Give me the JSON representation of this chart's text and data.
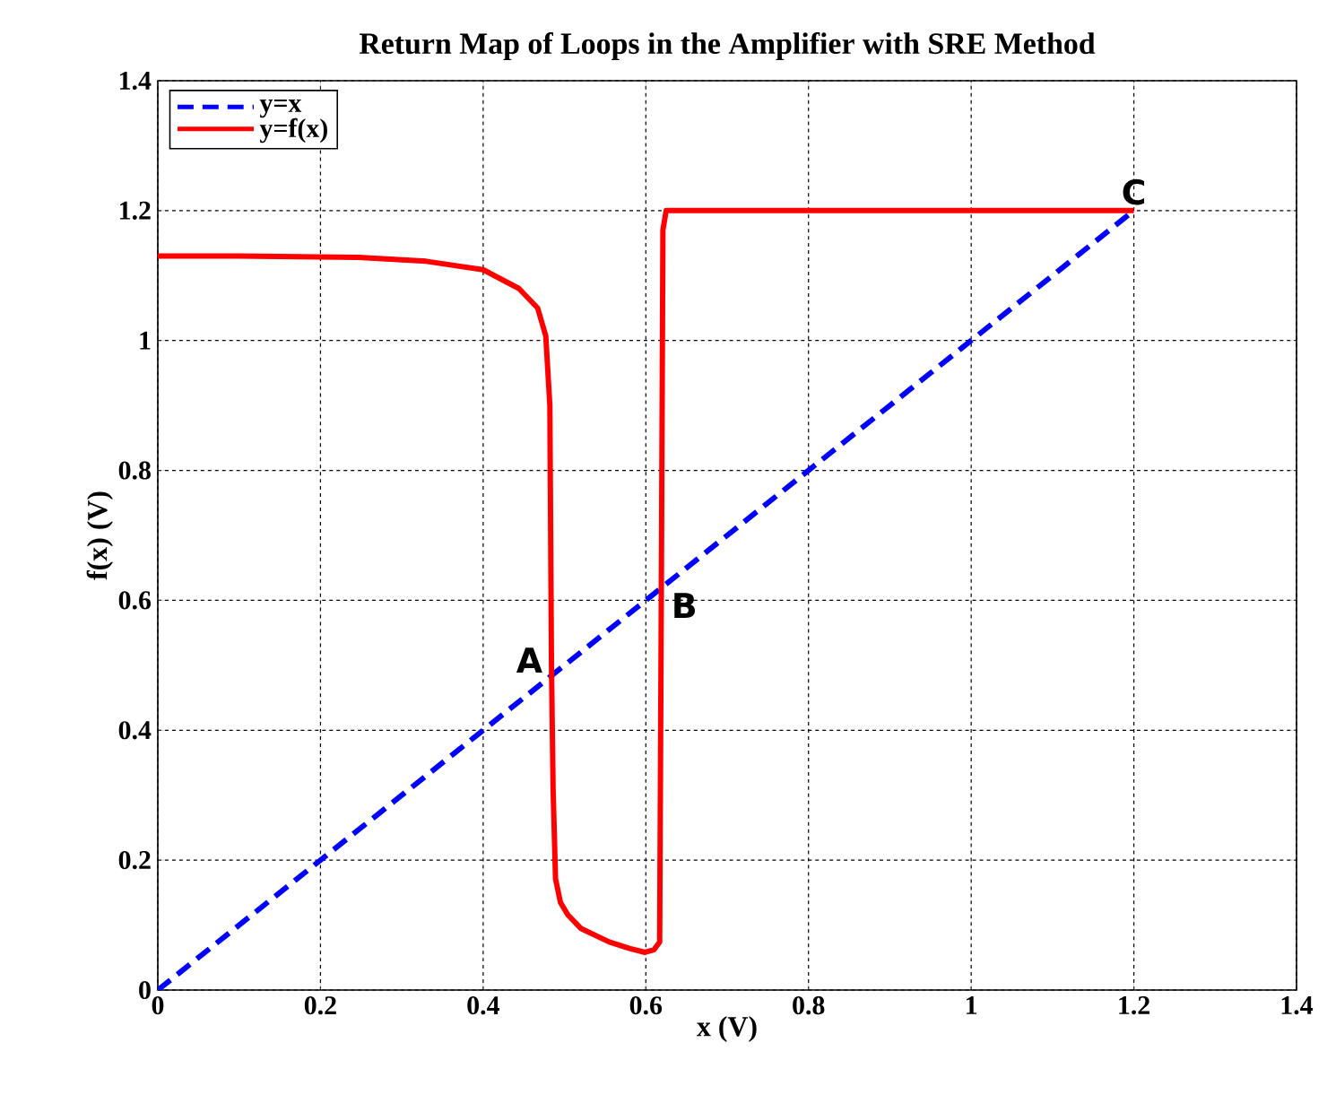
{
  "chart_data": {
    "type": "line",
    "title": "Return Map of Loops in the Amplifier with SRE Method",
    "xlabel": "x (V)",
    "ylabel": "f(x) (V)",
    "xlim": [
      0,
      1.4
    ],
    "ylim": [
      0,
      1.4
    ],
    "xticks": [
      0,
      0.2,
      0.4,
      0.6,
      0.8,
      1,
      1.2,
      1.4
    ],
    "yticks": [
      0,
      0.2,
      0.4,
      0.6,
      0.8,
      1,
      1.2,
      1.4
    ],
    "grid": true,
    "legend": "top left",
    "marker": "none",
    "series": [
      {
        "name": "y=x",
        "color": "#0000ff",
        "line_style": "dashed",
        "x": [
          0,
          1.2
        ],
        "values": [
          0,
          1.2
        ]
      },
      {
        "name": "y=f(x)",
        "color": "#ff0000",
        "line_style": "solid",
        "x": [
          0,
          0.1,
          0.247,
          0.33,
          0.4,
          0.444,
          0.467,
          0.477,
          0.482,
          0.484,
          0.486,
          0.489,
          0.495,
          0.504,
          0.52,
          0.555,
          0.58,
          0.599,
          0.61,
          0.617,
          0.619,
          0.621,
          0.625,
          0.8,
          1.2
        ],
        "values": [
          1.13,
          1.13,
          1.128,
          1.122,
          1.109,
          1.08,
          1.05,
          1.007,
          0.9,
          0.5,
          0.309,
          0.171,
          0.135,
          0.116,
          0.095,
          0.074,
          0.064,
          0.058,
          0.062,
          0.074,
          0.6,
          1.17,
          1.2,
          1.2,
          1.2
        ]
      }
    ],
    "annotations": [
      {
        "text": "A",
        "x": 0.48,
        "y": 0.48
      },
      {
        "text": "B",
        "x": 0.62,
        "y": 0.62
      },
      {
        "text": "C",
        "x": 1.2,
        "y": 1.2
      }
    ]
  }
}
